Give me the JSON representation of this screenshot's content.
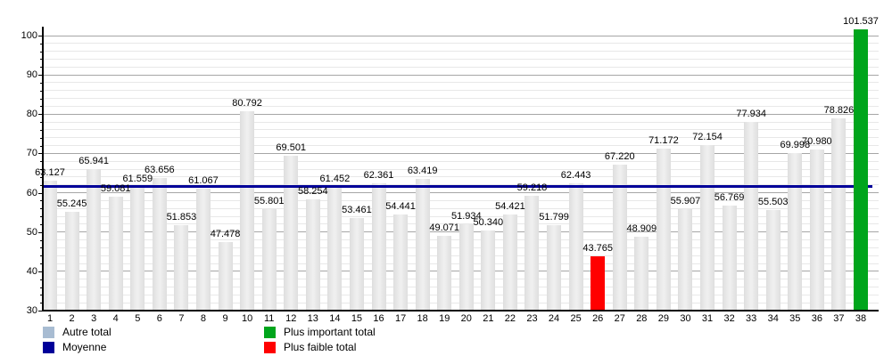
{
  "chart_data": {
    "type": "bar",
    "title": "",
    "categories": [
      "1",
      "2",
      "3",
      "4",
      "5",
      "6",
      "7",
      "8",
      "9",
      "10",
      "11",
      "12",
      "13",
      "14",
      "15",
      "16",
      "17",
      "18",
      "19",
      "20",
      "21",
      "22",
      "23",
      "24",
      "25",
      "26",
      "27",
      "28",
      "29",
      "30",
      "31",
      "32",
      "33",
      "34",
      "35",
      "36",
      "37",
      "38"
    ],
    "values": [
      63.127,
      55.245,
      65.941,
      59.081,
      61.559,
      63.656,
      51.853,
      61.067,
      47.478,
      80.792,
      55.801,
      69.501,
      58.254,
      61.452,
      53.461,
      62.361,
      54.441,
      63.419,
      49.071,
      51.934,
      50.34,
      54.421,
      59.218,
      51.799,
      62.443,
      43.765,
      67.22,
      48.909,
      71.172,
      55.907,
      72.154,
      56.769,
      77.934,
      55.503,
      69.998,
      70.98,
      78.826,
      101.537
    ],
    "value_label_decimals": 3,
    "mean_line": {
      "label": "Moyenne",
      "value": 61.537
    },
    "max": {
      "index": 38,
      "value": 101.537,
      "label": "Plus important total"
    },
    "min": {
      "index": 26,
      "value": 43.765,
      "label": "Plus faible total"
    },
    "y_axis": {
      "min": 30,
      "max": 100,
      "major_step": 10,
      "minor_step": 2,
      "ticks": [
        30,
        40,
        50,
        60,
        70,
        80,
        90,
        100
      ]
    },
    "legend": [
      {
        "label": "Autre total",
        "color": "#a8bcd2"
      },
      {
        "label": "Moyenne",
        "color": "#000099"
      },
      {
        "label": "Plus important total",
        "color": "#00a51c"
      },
      {
        "label": "Plus faible total",
        "color": "#ff0000"
      }
    ],
    "colors": {
      "other_bar": "#e6e6e6",
      "mean_line": "#000099",
      "max_bar": "#00a51c",
      "min_bar": "#ff0000",
      "grid_major": "#a6a6a6",
      "grid_minor": "#e8e8e8",
      "axis": "#000000"
    },
    "legend_position": "bottom",
    "grid": "on"
  }
}
